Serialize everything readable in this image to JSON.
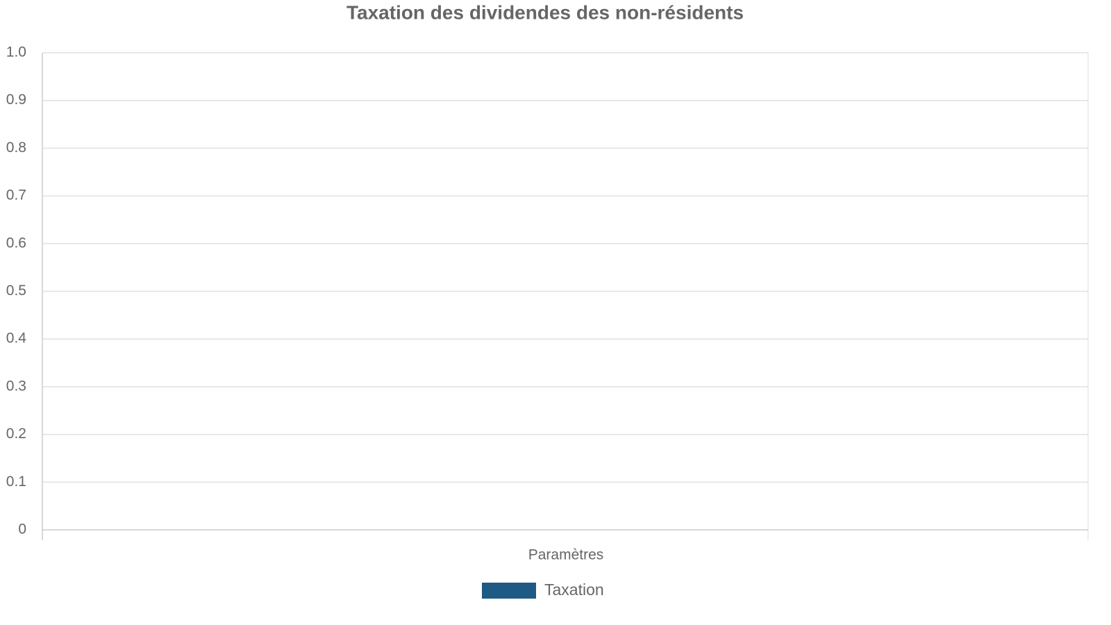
{
  "chart_data": {
    "type": "bar",
    "title": "Taxation des dividendes des non-résidents",
    "x_label": "Paramètres",
    "categories": [],
    "series": [
      {
        "name": "Taxation",
        "color": "#1f5a85",
        "values": []
      }
    ],
    "ylim": [
      0,
      1
    ],
    "yticks": [
      0,
      0.1,
      0.2,
      0.3,
      0.4,
      0.5,
      0.6,
      0.7,
      0.8,
      0.9,
      {
        "value": 1,
        "label": "1.0"
      }
    ],
    "grid": true,
    "legend": "bottom"
  }
}
